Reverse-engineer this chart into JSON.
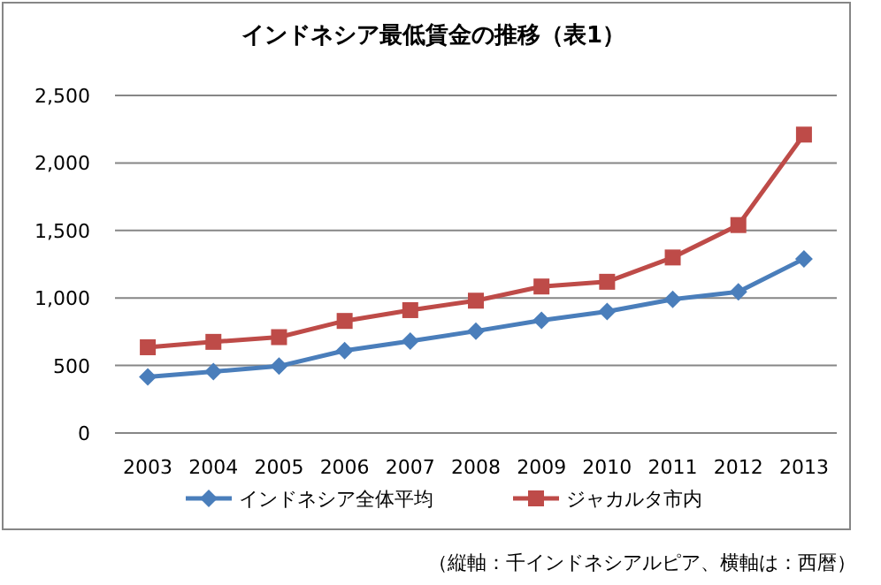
{
  "chart_data": {
    "type": "line",
    "title": "インドネシア最低賃金の推移（表1）",
    "categories": [
      "2003",
      "2004",
      "2005",
      "2006",
      "2007",
      "2008",
      "2009",
      "2010",
      "2011",
      "2012",
      "2013"
    ],
    "series": [
      {
        "name": "インドネシア全体平均",
        "color": "#4a7ebb",
        "marker": "diamond",
        "values": [
          415,
          455,
          495,
          610,
          680,
          755,
          835,
          900,
          990,
          1045,
          1290
        ]
      },
      {
        "name": "ジャカルタ市内",
        "color": "#be4b48",
        "marker": "square",
        "values": [
          635,
          675,
          710,
          830,
          910,
          980,
          1085,
          1120,
          1300,
          1540,
          2210
        ]
      }
    ],
    "ylim": [
      0,
      2500
    ],
    "yticks": [
      {
        "value": 0,
        "label": "0"
      },
      {
        "value": 500,
        "label": "500"
      },
      {
        "value": 1000,
        "label": "1,000"
      },
      {
        "value": 1500,
        "label": "1,500"
      },
      {
        "value": 2000,
        "label": "2,000"
      },
      {
        "value": 2500,
        "label": "2,500"
      }
    ],
    "grid": "y",
    "legend": "bottom",
    "line_style": "solid",
    "annotations": [
      "（縦軸：千インドネシアルピア、横軸は：西暦）"
    ]
  }
}
